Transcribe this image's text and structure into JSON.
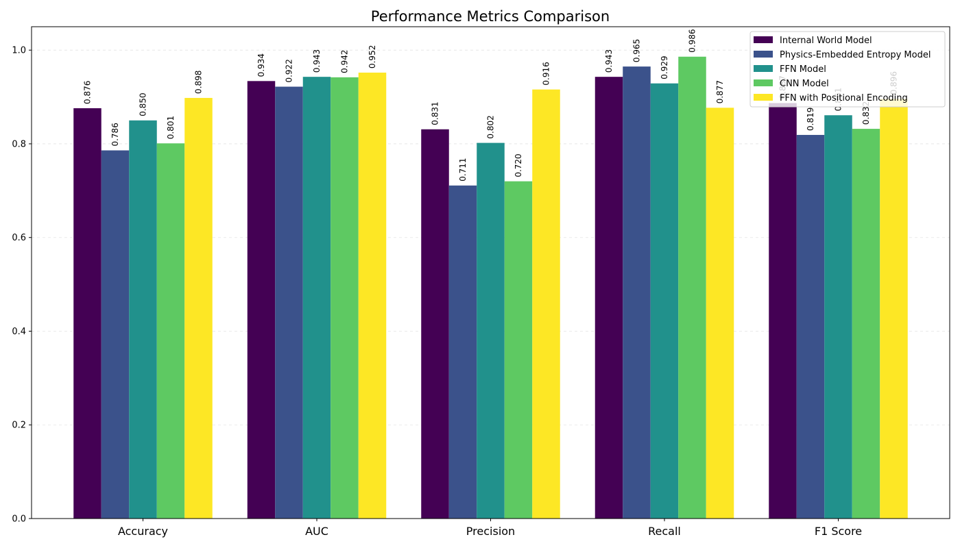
{
  "chart_data": {
    "type": "bar",
    "title": "Performance Metrics Comparison",
    "xlabel": "",
    "ylabel": "",
    "categories": [
      "Accuracy",
      "AUC",
      "Precision",
      "Recall",
      "F1 Score"
    ],
    "series": [
      {
        "name": "Internal World Model",
        "color": "#440154",
        "values": [
          0.876,
          0.934,
          0.831,
          0.943,
          0.887
        ]
      },
      {
        "name": "Physics-Embedded Entropy Model",
        "color": "#3b528b",
        "values": [
          0.786,
          0.922,
          0.711,
          0.965,
          0.819
        ]
      },
      {
        "name": "FFN Model",
        "color": "#21918c",
        "values": [
          0.85,
          0.943,
          0.802,
          0.929,
          0.861
        ]
      },
      {
        "name": "CNN Model",
        "color": "#5ec962",
        "values": [
          0.801,
          0.942,
          0.72,
          0.986,
          0.832
        ]
      },
      {
        "name": "FFN with Positional Encoding",
        "color": "#fde725",
        "values": [
          0.898,
          0.952,
          0.916,
          0.877,
          0.896
        ]
      }
    ],
    "ylim": [
      0,
      1.05
    ],
    "yticks": [
      "0.0",
      "0.2",
      "0.4",
      "0.6",
      "0.8",
      "1.0"
    ],
    "grid": true,
    "legend_position": "top-right"
  }
}
